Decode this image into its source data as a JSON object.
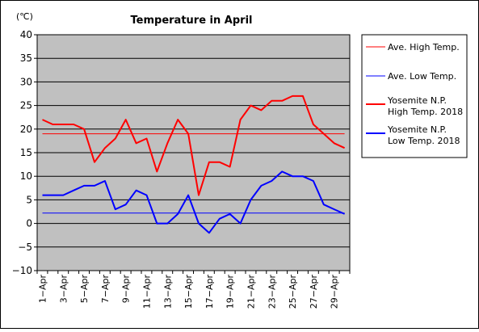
{
  "chart_data": {
    "type": "line",
    "title": "Temperature in April",
    "unit_label": "(℃)",
    "ylim": [
      -10,
      40
    ],
    "yticks": [
      -10,
      -5,
      0,
      5,
      10,
      15,
      20,
      25,
      30,
      35,
      40
    ],
    "categories": [
      "1-Apr",
      "2-Apr",
      "3-Apr",
      "4-Apr",
      "5-Apr",
      "6-Apr",
      "7-Apr",
      "8-Apr",
      "9-Apr",
      "10-Apr",
      "11-Apr",
      "12-Apr",
      "13-Apr",
      "14-Apr",
      "15-Apr",
      "16-Apr",
      "17-Apr",
      "18-Apr",
      "19-Apr",
      "20-Apr",
      "21-Apr",
      "22-Apr",
      "23-Apr",
      "24-Apr",
      "25-Apr",
      "26-Apr",
      "27-Apr",
      "28-Apr",
      "29-Apr",
      "30-Apr"
    ],
    "x_tick_labels": [
      "1−Apr",
      "3−Apr",
      "5−Apr",
      "7−Apr",
      "9−Apr",
      "11−Apr",
      "13−Apr",
      "15−Apr",
      "17−Apr",
      "19−Apr",
      "21−Apr",
      "23−Apr",
      "25−Apr",
      "27−Apr",
      "29−Apr"
    ],
    "grid": "horizontal",
    "legend_position": "right",
    "plot_background": "#c0c0c0",
    "series": [
      {
        "name": "Ave. High Temp.",
        "color": "#ff0000",
        "style": "thin",
        "values": [
          19,
          19,
          19,
          19,
          19,
          19,
          19,
          19,
          19,
          19,
          19,
          19,
          19,
          19,
          19,
          19,
          19,
          19,
          19,
          19,
          19,
          19,
          19,
          19,
          19,
          19,
          19,
          19,
          19,
          19
        ]
      },
      {
        "name": "Ave. Low Temp.",
        "color": "#0000ff",
        "style": "thin",
        "values": [
          2.2,
          2.2,
          2.2,
          2.2,
          2.2,
          2.2,
          2.2,
          2.2,
          2.2,
          2.2,
          2.2,
          2.2,
          2.2,
          2.2,
          2.2,
          2.2,
          2.2,
          2.2,
          2.2,
          2.2,
          2.2,
          2.2,
          2.2,
          2.2,
          2.2,
          2.2,
          2.2,
          2.2,
          2.2,
          2.2
        ]
      },
      {
        "name": "Yosemite N.P.\nHigh Temp. 2018",
        "color": "#ff0000",
        "style": "thick",
        "values": [
          22,
          21,
          21,
          21,
          20,
          13,
          16,
          18,
          22,
          17,
          18,
          11,
          17,
          22,
          19,
          6,
          13,
          13,
          12,
          22,
          25,
          24,
          26,
          26,
          27,
          27,
          21,
          19,
          17,
          16
        ]
      },
      {
        "name": "Yosemite N.P.\nLow Temp. 2018",
        "color": "#0000ff",
        "style": "thick",
        "values": [
          6,
          6,
          6,
          7,
          8,
          8,
          9,
          3,
          4,
          7,
          6,
          0,
          0,
          2,
          6,
          0,
          -2,
          1,
          2,
          0,
          5,
          8,
          9,
          11,
          10,
          10,
          9,
          4,
          3,
          2
        ]
      }
    ]
  }
}
